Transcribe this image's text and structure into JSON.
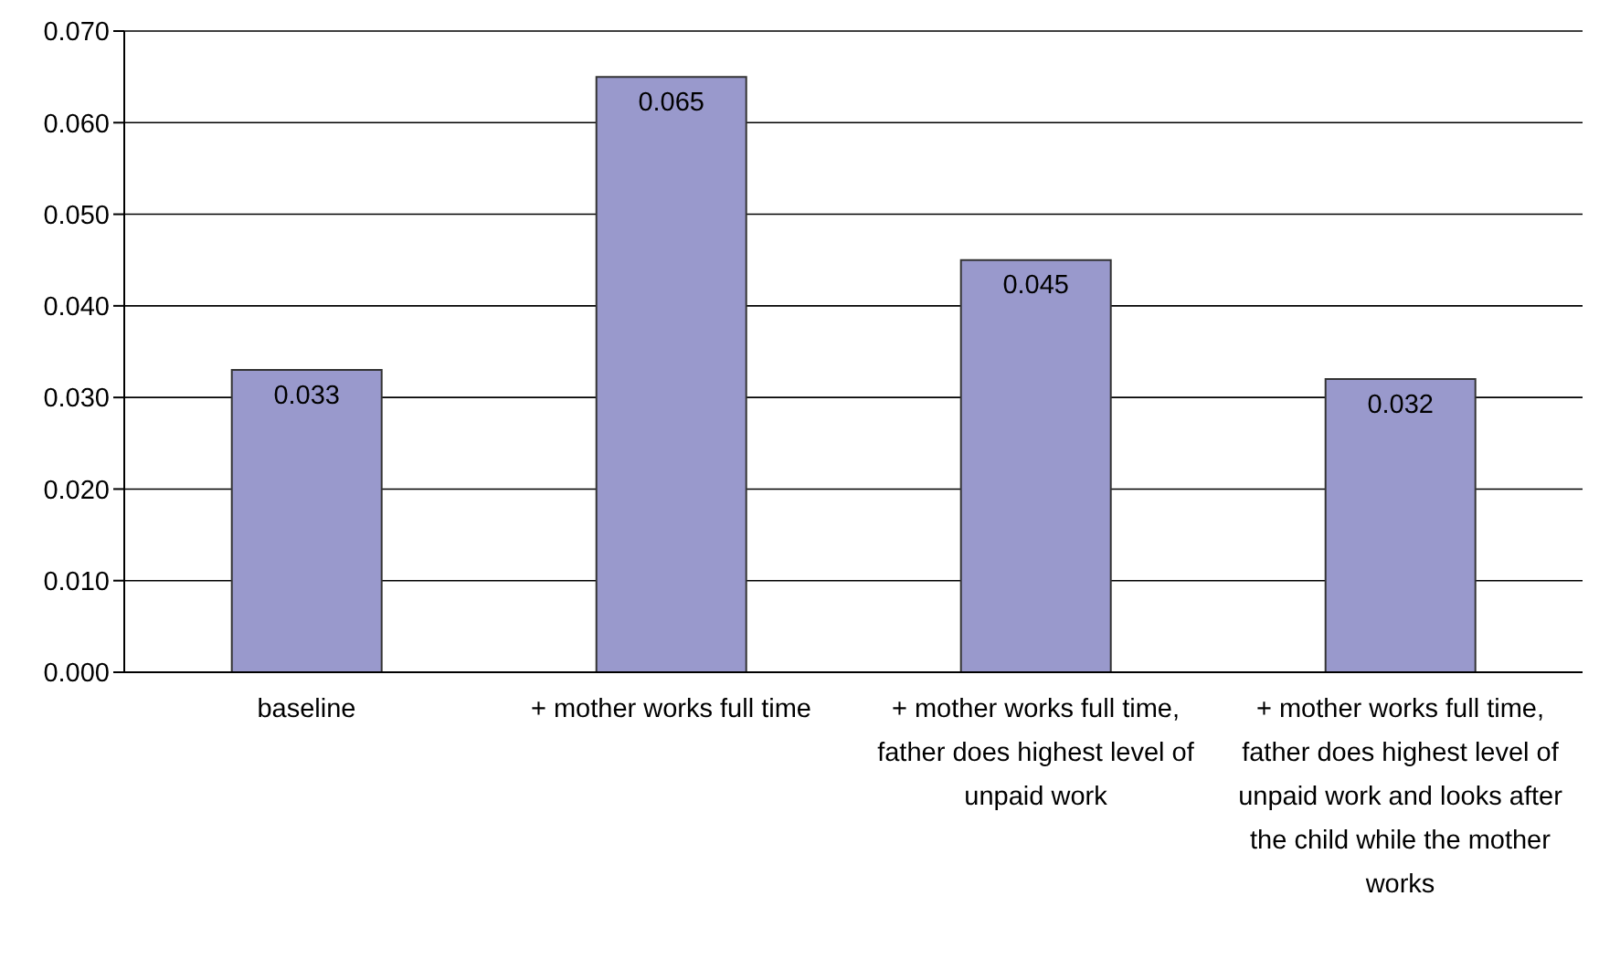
{
  "chart_data": {
    "type": "bar",
    "categories": [
      "baseline",
      "+ mother works full time",
      "+ mother works full time, father does highest level of unpaid work",
      "+ mother works full time, father does highest level of unpaid work and looks after the child while the mother works"
    ],
    "values": [
      0.033,
      0.065,
      0.045,
      0.032
    ],
    "color": "#9999cc",
    "ylim": [
      0,
      0.07
    ],
    "yticks": [
      {
        "value": 0,
        "label": "0.000"
      },
      {
        "value": 0.01,
        "label": "0.010"
      },
      {
        "value": 0.02,
        "label": "0.020"
      },
      {
        "value": 0.03,
        "label": "0.030"
      },
      {
        "value": 0.04,
        "label": "0.040"
      },
      {
        "value": 0.05,
        "label": "0.050"
      },
      {
        "value": 0.06,
        "label": "0.060"
      },
      {
        "value": 0.07,
        "label": "0.070"
      }
    ],
    "grid": "y",
    "data_labels": true
  }
}
